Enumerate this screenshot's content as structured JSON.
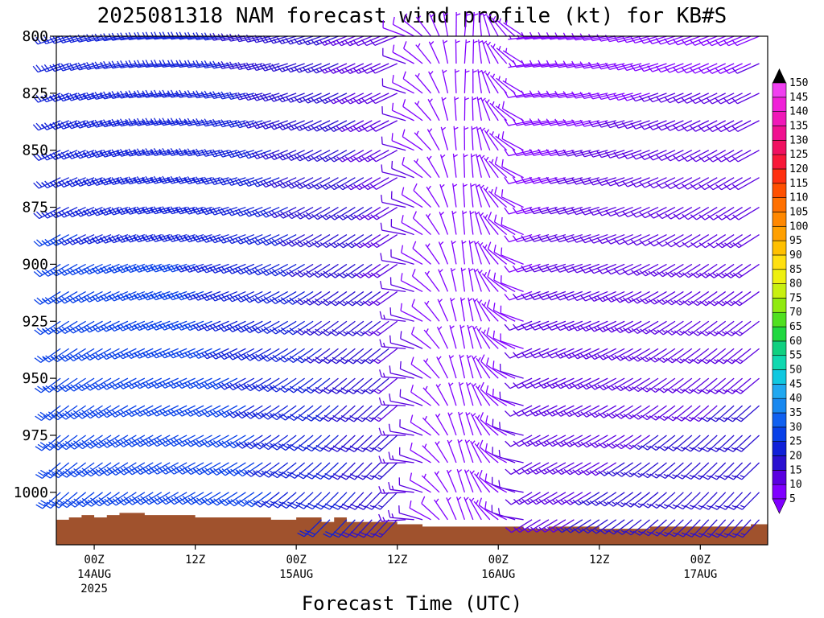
{
  "chart_data": {
    "type": "wind-barb-time-height",
    "title": "2025081318 NAM forecast wind profile (kt) for KB#S",
    "xlabel": "Forecast Time (UTC)",
    "ylabel": "",
    "yaxis": {
      "reversed": true,
      "ylim": [
        800,
        1023
      ],
      "ticks": [
        "800",
        "825",
        "850",
        "875",
        "900",
        "925",
        "950",
        "975",
        "1000"
      ]
    },
    "xaxis": {
      "range_hours": [
        -4.5,
        80.0
      ],
      "ticks": [
        {
          "hour": 0,
          "line1": "00Z",
          "line2": "14AUG",
          "line3": "2025"
        },
        {
          "hour": 12,
          "line1": "12Z",
          "line2": "",
          "line3": ""
        },
        {
          "hour": 24,
          "line1": "00Z",
          "line2": "15AUG",
          "line3": ""
        },
        {
          "hour": 36,
          "line1": "12Z",
          "line2": "",
          "line3": ""
        },
        {
          "hour": 48,
          "line1": "00Z",
          "line2": "16AUG",
          "line3": ""
        },
        {
          "hour": 60,
          "line1": "12Z",
          "line2": "",
          "line3": ""
        },
        {
          "hour": 72,
          "line1": "00Z",
          "line2": "17AUG",
          "line3": ""
        }
      ]
    },
    "colorbar": {
      "levels": [
        "5",
        "10",
        "15",
        "20",
        "25",
        "30",
        "35",
        "40",
        "45",
        "50",
        "55",
        "60",
        "65",
        "70",
        "75",
        "80",
        "85",
        "90",
        "95",
        "100",
        "105",
        "110",
        "115",
        "120",
        "125",
        "130",
        "135",
        "140",
        "145",
        "150"
      ],
      "colors": [
        "#8000ff",
        "#5a00e0",
        "#2a10d0",
        "#1020d8",
        "#0840e8",
        "#1060f0",
        "#1888f0",
        "#20a8f0",
        "#10c8e0",
        "#10d8b0",
        "#10d080",
        "#20d840",
        "#50e020",
        "#90ea10",
        "#c8f010",
        "#eef010",
        "#ffe010",
        "#ffc000",
        "#ffa000",
        "#ff8800",
        "#ff7000",
        "#ff5000",
        "#ff3010",
        "#f81838",
        "#f01060",
        "#f01090",
        "#f018b8",
        "#f020d8",
        "#f040f0"
      ]
    },
    "pressure_levels": [
      800,
      812,
      825,
      837,
      850,
      862,
      875,
      887,
      900,
      912,
      925,
      937,
      950,
      962,
      975,
      987,
      1000,
      1012
    ],
    "time_hours": [
      -4,
      -3,
      -2,
      -1,
      0,
      1,
      2,
      3,
      4,
      5,
      6,
      7,
      8,
      9,
      10,
      11,
      12,
      13,
      14,
      15,
      16,
      17,
      18,
      19,
      20,
      21,
      22,
      23,
      24,
      25,
      26,
      27,
      28,
      29,
      30,
      31,
      32,
      33,
      34,
      35,
      36,
      37,
      38,
      39,
      40,
      41,
      42,
      43,
      44,
      45,
      46,
      47,
      48,
      49,
      50,
      51,
      52,
      53,
      54,
      55,
      56,
      57,
      58,
      59,
      60,
      61,
      62,
      63,
      64,
      65,
      66,
      67,
      68,
      69,
      70,
      71,
      72,
      73,
      74,
      75,
      76,
      77,
      78,
      79
    ],
    "terrain": {
      "hours": [
        -4.5,
        -3,
        -1.5,
        0,
        1.5,
        3,
        4.5,
        6,
        9,
        12,
        15,
        18,
        21,
        24,
        27,
        28.5,
        30,
        36,
        39,
        42,
        48,
        51,
        54,
        57,
        60,
        66,
        72,
        75,
        78,
        80
      ],
      "pressure": [
        1012,
        1011,
        1010,
        1011,
        1010,
        1009,
        1009,
        1010,
        1010,
        1011,
        1011,
        1011,
        1012,
        1011,
        1013,
        1011,
        1013,
        1014,
        1015,
        1015,
        1015,
        1016,
        1015,
        1015,
        1016,
        1015,
        1015,
        1015,
        1014,
        1014
      ]
    }
  }
}
